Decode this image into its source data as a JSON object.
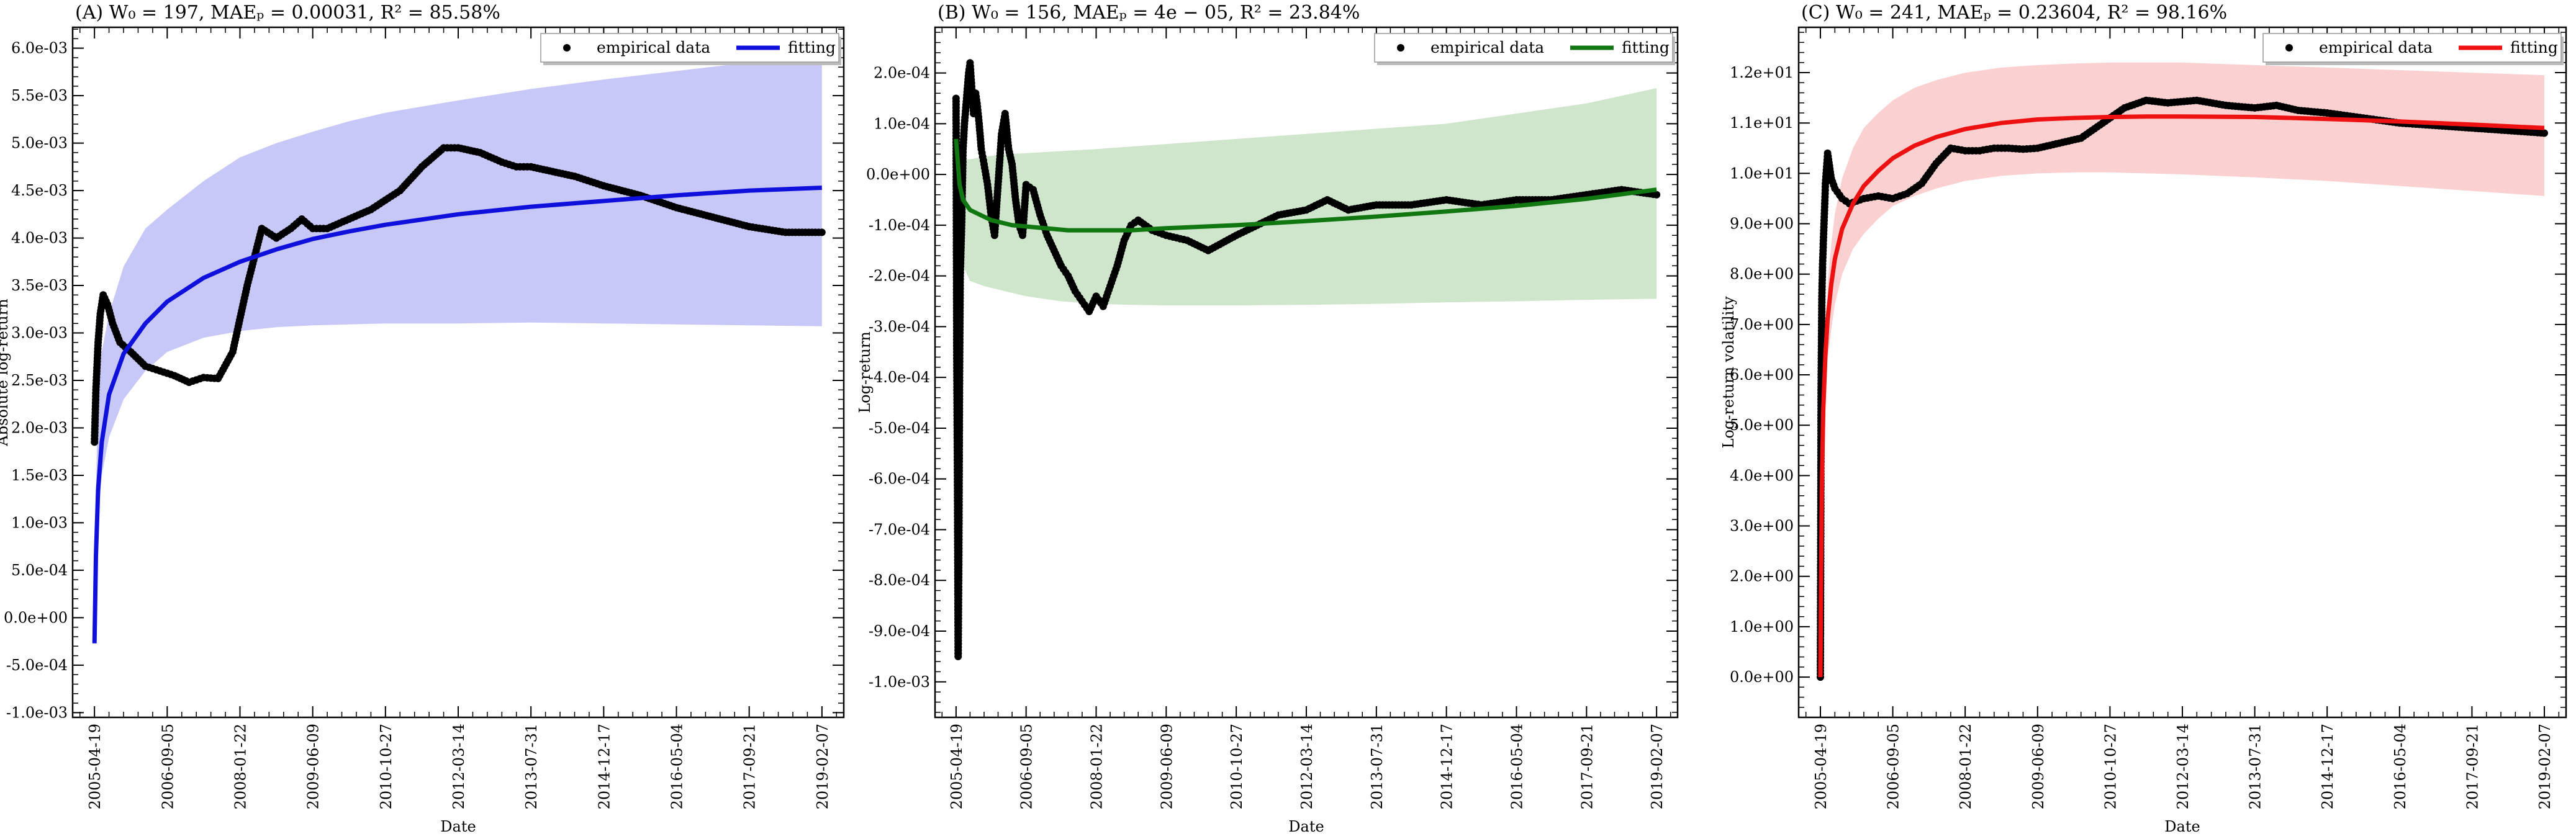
{
  "chart_data": [
    {
      "type": "scatter",
      "title": "(A) W₀ = 197, MAEₚ = 0.00031, R² = 85.58%",
      "xlabel": "Date",
      "ylabel": "Absolute log-return",
      "x_ticks": [
        "2005-04-19",
        "2006-09-05",
        "2008-01-22",
        "2009-06-09",
        "2010-10-27",
        "2012-03-14",
        "2013-07-31",
        "2014-12-17",
        "2016-05-04",
        "2017-09-21",
        "2019-02-07"
      ],
      "y_ticks": [
        "-1.0e-03",
        "-5.0e-04",
        "0.0e+00",
        "5.0e-04",
        "1.0e-03",
        "1.5e-03",
        "2.0e-03",
        "2.5e-03",
        "3.0e-03",
        "3.5e-03",
        "4.0e-03",
        "4.5e-03",
        "5.0e-03",
        "5.5e-03",
        "6.0e-03"
      ],
      "xlim": [
        -0.3,
        10.3
      ],
      "ylim": [
        -0.00105,
        0.00622
      ],
      "legend": {
        "placement": "top-right",
        "entries": [
          "empirical data",
          "fitting"
        ]
      },
      "fit_color": "#1010dd",
      "band_color": "#c8c8f8",
      "empirical": {
        "name": "empirical data",
        "x": [
          0,
          0.02,
          0.05,
          0.08,
          0.12,
          0.18,
          0.25,
          0.35,
          0.5,
          0.7,
          0.9,
          1.1,
          1.3,
          1.5,
          1.7,
          1.9,
          2.1,
          2.3,
          2.5,
          2.7,
          2.85,
          3.0,
          3.2,
          3.5,
          3.8,
          4.0,
          4.2,
          4.5,
          4.8,
          5.0,
          5.3,
          5.6,
          5.8,
          6.0,
          6.3,
          6.6,
          7.0,
          7.5,
          8.0,
          8.5,
          9.0,
          9.5,
          10.0
        ],
        "y": [
          0.00185,
          0.0024,
          0.0029,
          0.0032,
          0.0034,
          0.0033,
          0.0031,
          0.0029,
          0.0028,
          0.00265,
          0.0026,
          0.00255,
          0.00248,
          0.00253,
          0.00252,
          0.0028,
          0.0035,
          0.0041,
          0.004,
          0.0041,
          0.0042,
          0.0041,
          0.0041,
          0.0042,
          0.0043,
          0.0044,
          0.0045,
          0.00475,
          0.00495,
          0.00495,
          0.0049,
          0.0048,
          0.00475,
          0.00475,
          0.0047,
          0.00465,
          0.00455,
          0.00445,
          0.00432,
          0.00422,
          0.00412,
          0.00406,
          0.00406
        ]
      },
      "fitting": {
        "name": "fitting",
        "x": [
          0,
          0.02,
          0.05,
          0.1,
          0.2,
          0.4,
          0.7,
          1.0,
          1.5,
          2.0,
          2.5,
          3.0,
          3.5,
          4.0,
          5.0,
          6.0,
          7.0,
          8.0,
          9.0,
          10.0
        ],
        "y": [
          -0.00027,
          0.00065,
          0.00135,
          0.00185,
          0.00235,
          0.00278,
          0.0031,
          0.00333,
          0.00358,
          0.00375,
          0.00388,
          0.00399,
          0.00407,
          0.00414,
          0.00425,
          0.00433,
          0.00439,
          0.00445,
          0.0045,
          0.00453
        ]
      },
      "band": {
        "x": [
          0,
          0.05,
          0.1,
          0.2,
          0.4,
          0.7,
          1.0,
          1.5,
          2.0,
          2.5,
          3.0,
          3.5,
          4.0,
          5.0,
          6.0,
          7.0,
          8.0,
          9.0,
          10.0
        ],
        "upper": [
          0.0006,
          0.0024,
          0.0028,
          0.0032,
          0.0037,
          0.0041,
          0.0043,
          0.0046,
          0.00485,
          0.005,
          0.00512,
          0.00523,
          0.00532,
          0.00545,
          0.00557,
          0.00567,
          0.00576,
          0.00585,
          0.00592
        ],
        "lower": [
          -0.00027,
          0.001,
          0.0015,
          0.0019,
          0.0023,
          0.0026,
          0.0028,
          0.00295,
          0.00302,
          0.00306,
          0.00308,
          0.00309,
          0.0031,
          0.0031,
          0.00311,
          0.0031,
          0.00309,
          0.00308,
          0.00307
        ]
      }
    },
    {
      "type": "scatter",
      "title": "(B) W₀ = 156, MAEₚ = 4e − 05, R² = 23.84%",
      "xlabel": "Date",
      "ylabel": "Log-return",
      "x_ticks": [
        "2005-04-19",
        "2006-09-05",
        "2008-01-22",
        "2009-06-09",
        "2010-10-27",
        "2012-03-14",
        "2013-07-31",
        "2014-12-17",
        "2016-05-04",
        "2017-09-21",
        "2019-02-07"
      ],
      "y_ticks": [
        "-1.0e-03",
        "-9.0e-04",
        "-8.0e-04",
        "-7.0e-04",
        "-6.0e-04",
        "-5.0e-04",
        "-4.0e-04",
        "-3.0e-04",
        "-2.0e-04",
        "-1.0e-04",
        "0.0e+00",
        "1.0e-04",
        "2.0e-04"
      ],
      "xlim": [
        -0.3,
        10.3
      ],
      "ylim": [
        -0.00107,
        0.00029
      ],
      "legend": {
        "placement": "top-right",
        "entries": [
          "empirical data",
          "fitting"
        ]
      },
      "fit_color": "#117711",
      "band_color": "#cfe6cc",
      "empirical": {
        "name": "empirical data",
        "x": [
          0,
          0.01,
          0.02,
          0.03,
          0.04,
          0.05,
          0.06,
          0.08,
          0.1,
          0.12,
          0.15,
          0.18,
          0.2,
          0.22,
          0.25,
          0.28,
          0.3,
          0.33,
          0.36,
          0.4,
          0.45,
          0.5,
          0.55,
          0.6,
          0.65,
          0.7,
          0.75,
          0.8,
          0.85,
          0.9,
          0.95,
          1.0,
          1.1,
          1.2,
          1.3,
          1.4,
          1.5,
          1.6,
          1.7,
          1.8,
          1.9,
          2.0,
          2.1,
          2.2,
          2.3,
          2.4,
          2.5,
          2.6,
          2.8,
          3.0,
          3.3,
          3.6,
          4.0,
          4.3,
          4.6,
          5.0,
          5.3,
          5.6,
          6.0,
          6.5,
          7.0,
          7.5,
          8.0,
          8.5,
          9.0,
          9.5,
          10.0
        ],
        "y": [
          0.00015,
          -0.00035,
          -0.0006,
          -0.00095,
          -0.00075,
          -0.0004,
          -0.0002,
          -0.0001,
          5e-05,
          0.0001,
          0.00015,
          0.0002,
          0.00022,
          0.00018,
          0.00012,
          0.00016,
          0.00014,
          0.0001,
          5e-05,
          2e-05,
          -2e-05,
          -8e-05,
          -0.00012,
          -2e-05,
          8e-05,
          0.00012,
          5e-05,
          2e-05,
          -5e-05,
          -0.0001,
          -0.00012,
          -2e-05,
          -3e-05,
          -8e-05,
          -0.00012,
          -0.00015,
          -0.00018,
          -0.0002,
          -0.00023,
          -0.00025,
          -0.00027,
          -0.00024,
          -0.00026,
          -0.00022,
          -0.00018,
          -0.00013,
          -0.0001,
          -9e-05,
          -0.00011,
          -0.00012,
          -0.00013,
          -0.00015,
          -0.00012,
          -0.0001,
          -8e-05,
          -7e-05,
          -5e-05,
          -7e-05,
          -6e-05,
          -6e-05,
          -5e-05,
          -6e-05,
          -5e-05,
          -5e-05,
          -4e-05,
          -3e-05,
          -4e-05
        ]
      },
      "fitting": {
        "name": "fitting",
        "x": [
          0,
          0.05,
          0.1,
          0.2,
          0.35,
          0.5,
          0.8,
          1.2,
          1.6,
          2.0,
          2.5,
          3.0,
          4.0,
          5.0,
          6.0,
          7.0,
          8.0,
          9.0,
          10.0
        ],
        "y": [
          7e-05,
          -2e-05,
          -5e-05,
          -7e-05,
          -8e-05,
          -9e-05,
          -0.0001,
          -0.000105,
          -0.00011,
          -0.00011,
          -0.00011,
          -0.000106,
          -0.0001,
          -9.2e-05,
          -8.3e-05,
          -7.3e-05,
          -6.2e-05,
          -4.8e-05,
          -3e-05
        ]
      },
      "band": {
        "x": [
          0,
          0.05,
          0.1,
          0.2,
          0.4,
          0.7,
          1.0,
          1.5,
          2.0,
          2.5,
          3.0,
          4.0,
          5.0,
          6.0,
          7.0,
          8.0,
          9.0,
          10.0
        ],
        "upper": [
          8e-05,
          2e-05,
          3e-05,
          3e-05,
          3.5e-05,
          4e-05,
          4.2e-05,
          4.6e-05,
          5e-05,
          5.5e-05,
          6e-05,
          7e-05,
          8e-05,
          9e-05,
          0.0001,
          0.00012,
          0.00014,
          0.00017
        ],
        "lower": [
          7e-05,
          -0.0001,
          -0.00018,
          -0.00021,
          -0.00022,
          -0.00023,
          -0.00024,
          -0.00025,
          -0.000255,
          -0.000257,
          -0.000258,
          -0.000258,
          -0.000257,
          -0.000255,
          -0.000252,
          -0.00025,
          -0.000247,
          -0.000245
        ]
      }
    },
    {
      "type": "scatter",
      "title": "(C) W₀ = 241, MAEₚ = 0.23604, R² = 98.16%",
      "xlabel": "Date",
      "ylabel": "Log-return volatility",
      "x_ticks": [
        "2005-04-19",
        "2006-09-05",
        "2008-01-22",
        "2009-06-09",
        "2010-10-27",
        "2012-03-14",
        "2013-07-31",
        "2014-12-17",
        "2016-05-04",
        "2017-09-21",
        "2019-02-07"
      ],
      "y_ticks": [
        "0.0e+00",
        "1.0e+00",
        "2.0e+00",
        "3.0e+00",
        "4.0e+00",
        "5.0e+00",
        "6.0e+00",
        "7.0e+00",
        "8.0e+00",
        "9.0e+00",
        "1.0e+01",
        "1.1e+01",
        "1.2e+01"
      ],
      "xlim": [
        -0.3,
        10.3
      ],
      "ylim": [
        -0.8,
        12.9
      ],
      "legend": {
        "placement": "top-right",
        "entries": [
          "empirical data",
          "fitting"
        ]
      },
      "fit_color": "#ee1111",
      "band_color": "#fbd0d0",
      "empirical": {
        "name": "empirical data",
        "x": [
          0,
          0.01,
          0.02,
          0.03,
          0.05,
          0.07,
          0.1,
          0.15,
          0.2,
          0.3,
          0.4,
          0.5,
          0.6,
          0.8,
          1.0,
          1.2,
          1.4,
          1.6,
          1.8,
          2.0,
          2.2,
          2.4,
          2.6,
          2.8,
          3.0,
          3.3,
          3.6,
          3.9,
          4.2,
          4.5,
          4.8,
          5.2,
          5.6,
          6.0,
          6.3,
          6.6,
          7.0,
          7.5,
          8.0,
          8.5,
          9.0,
          9.5,
          10.0
        ],
        "y": [
          0,
          5.7,
          7.5,
          8.2,
          9.0,
          9.8,
          10.4,
          9.9,
          9.7,
          9.5,
          9.4,
          9.45,
          9.5,
          9.55,
          9.5,
          9.6,
          9.8,
          10.2,
          10.5,
          10.45,
          10.45,
          10.5,
          10.5,
          10.48,
          10.5,
          10.6,
          10.7,
          11.0,
          11.3,
          11.45,
          11.4,
          11.45,
          11.35,
          11.3,
          11.35,
          11.25,
          11.2,
          11.1,
          11.0,
          10.95,
          10.9,
          10.85,
          10.8
        ]
      },
      "fitting": {
        "name": "fitting",
        "x": [
          0,
          0.01,
          0.02,
          0.04,
          0.07,
          0.1,
          0.15,
          0.2,
          0.3,
          0.45,
          0.6,
          0.8,
          1.0,
          1.3,
          1.6,
          2.0,
          2.5,
          3.0,
          3.5,
          4.0,
          4.5,
          5.0,
          6.0,
          7.0,
          8.0,
          9.0,
          10.0
        ],
        "y": [
          0,
          2.0,
          3.7,
          5.3,
          6.4,
          7.1,
          7.8,
          8.3,
          8.9,
          9.4,
          9.75,
          10.05,
          10.3,
          10.55,
          10.72,
          10.88,
          11.0,
          11.07,
          11.1,
          11.12,
          11.13,
          11.13,
          11.12,
          11.08,
          11.03,
          10.97,
          10.9
        ]
      },
      "band": {
        "x": [
          0.1,
          0.15,
          0.2,
          0.3,
          0.45,
          0.6,
          0.8,
          1.0,
          1.3,
          1.6,
          2.0,
          2.5,
          3.0,
          3.5,
          4.0,
          4.5,
          5.0,
          6.0,
          7.0,
          8.0,
          9.0,
          10.0
        ],
        "upper": [
          7.8,
          8.6,
          9.2,
          9.9,
          10.5,
          10.9,
          11.2,
          11.45,
          11.7,
          11.85,
          12.0,
          12.1,
          12.15,
          12.18,
          12.2,
          12.2,
          12.2,
          12.15,
          12.1,
          12.05,
          12.0,
          11.95
        ],
        "lower": [
          6.3,
          6.9,
          7.4,
          8.0,
          8.5,
          8.8,
          9.1,
          9.35,
          9.55,
          9.7,
          9.85,
          9.95,
          10.0,
          10.02,
          10.02,
          10.0,
          9.98,
          9.92,
          9.85,
          9.75,
          9.65,
          9.55
        ]
      }
    }
  ]
}
